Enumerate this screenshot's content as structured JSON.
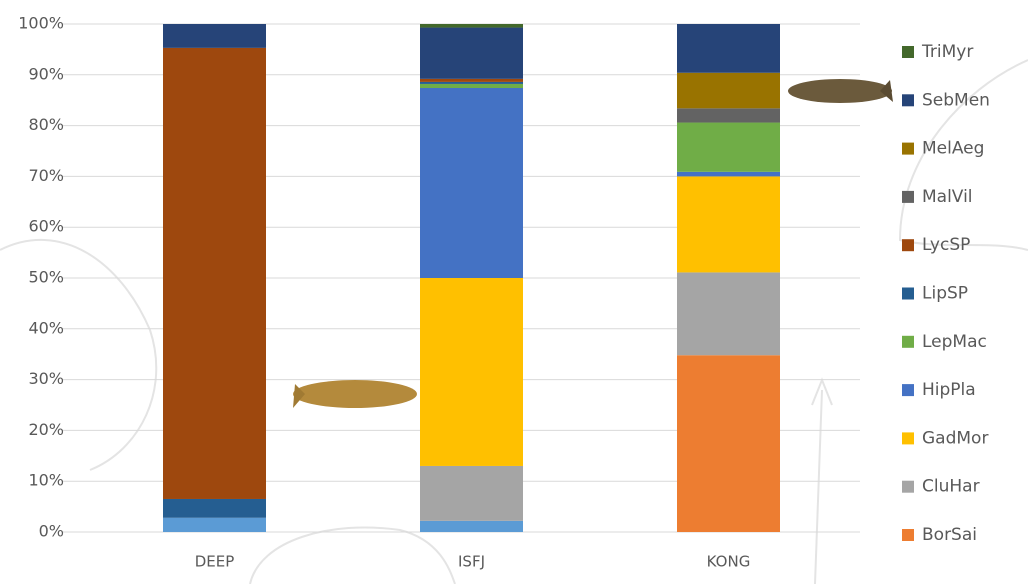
{
  "chart_data": {
    "type": "stacked_bar",
    "categories": [
      "DEEP",
      "ISFJ",
      "KONG"
    ],
    "series": [
      {
        "name": null,
        "color": "#5b9bd5",
        "values": [
          2.8,
          2.2,
          0
        ]
      },
      {
        "name": "BorSai",
        "color": "#ed7d31",
        "values": [
          0,
          0,
          34.8
        ]
      },
      {
        "name": "CluHar",
        "color": "#a5a5a5",
        "values": [
          0,
          10.8,
          16.3
        ]
      },
      {
        "name": "GadMor",
        "color": "#ffc000",
        "values": [
          0,
          37.0,
          18.9
        ]
      },
      {
        "name": "HipPla",
        "color": "#4472c4",
        "values": [
          0,
          37.4,
          0.9
        ]
      },
      {
        "name": "LepMac",
        "color": "#70ad47",
        "values": [
          0,
          0.8,
          9.7
        ]
      },
      {
        "name": "LipSP",
        "color": "#255e91",
        "values": [
          3.7,
          0.4,
          0
        ]
      },
      {
        "name": "LycSP",
        "color": "#9e480e",
        "values": [
          88.8,
          0.6,
          0
        ]
      },
      {
        "name": "MalVil",
        "color": "#636363",
        "values": [
          0,
          0,
          2.8
        ]
      },
      {
        "name": "MelAeg",
        "color": "#997300",
        "values": [
          0,
          0,
          7.0
        ]
      },
      {
        "name": "SebMen",
        "color": "#264478",
        "values": [
          4.7,
          10.1,
          9.6
        ]
      },
      {
        "name": "TriMyr",
        "color": "#43682b",
        "values": [
          0,
          0.7,
          0
        ]
      }
    ],
    "ylim": [
      0,
      100
    ],
    "yticks": [
      {
        "value": 0,
        "label": "0%"
      },
      {
        "value": 10,
        "label": "10%"
      },
      {
        "value": 20,
        "label": "20%"
      },
      {
        "value": 30,
        "label": "30%"
      },
      {
        "value": 40,
        "label": "40%"
      },
      {
        "value": 50,
        "label": "50%"
      },
      {
        "value": 60,
        "label": "60%"
      },
      {
        "value": 70,
        "label": "70%"
      },
      {
        "value": 80,
        "label": "80%"
      },
      {
        "value": 90,
        "label": "90%"
      },
      {
        "value": 100,
        "label": "100%"
      }
    ],
    "grid": true
  }
}
